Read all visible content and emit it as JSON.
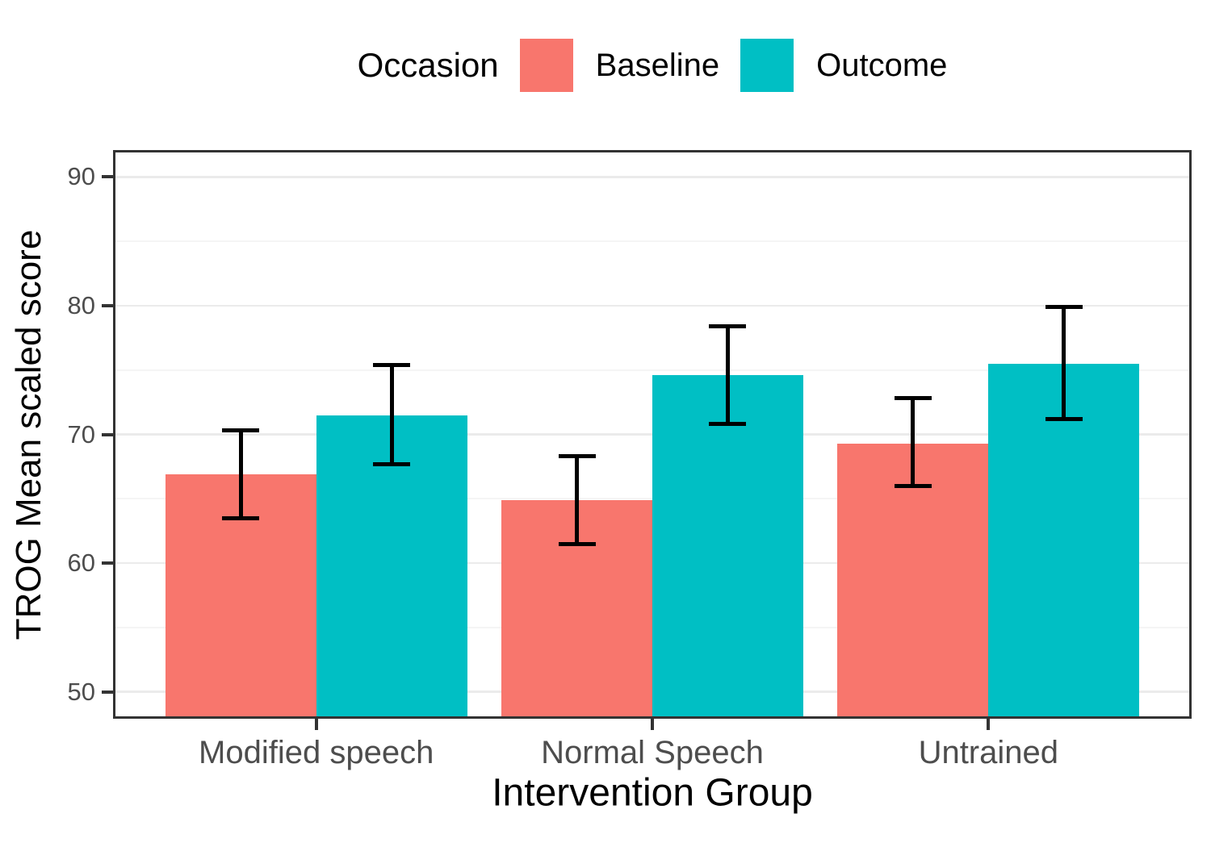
{
  "figure": {
    "y_axis_title": "TROG Mean scaled score",
    "x_axis_title": "Intervention Group"
  },
  "legend": {
    "title": "Occasion",
    "items": [
      {
        "label": "Baseline",
        "color": "#F8766D"
      },
      {
        "label": "Outcome",
        "color": "#00BFC4"
      }
    ]
  },
  "colors": {
    "baseline_fill": "#F8766D",
    "outcome_fill": "#00BFC4",
    "grid_major": "#EBEBEB",
    "grid_minor": "#F5F5F5",
    "panel_border": "#333333",
    "tick_mark": "#333333",
    "tick_label": "#4D4D4D",
    "error_bar": "#000000"
  },
  "chart_data": {
    "type": "bar",
    "title": "",
    "xlabel": "Intervention Group",
    "ylabel": "TROG Mean scaled score",
    "categories": [
      "Modified speech",
      "Normal Speech",
      "Untrained"
    ],
    "series": [
      {
        "name": "Baseline",
        "color": "#F8766D",
        "values": [
          66.9,
          64.9,
          69.3
        ],
        "error_low": [
          63.5,
          61.5,
          66.0
        ],
        "error_high": [
          70.3,
          68.3,
          72.8
        ]
      },
      {
        "name": "Outcome",
        "color": "#00BFC4",
        "values": [
          71.5,
          74.6,
          75.5
        ],
        "error_low": [
          67.7,
          70.8,
          71.2
        ],
        "error_high": [
          75.4,
          78.4,
          79.9
        ]
      }
    ],
    "ylim": [
      48.1,
      91.9
    ],
    "y_major_ticks": [
      50,
      60,
      70,
      80,
      90
    ],
    "y_minor_ticks": [
      55,
      65,
      75,
      85
    ],
    "grid": true,
    "legend_position": "top",
    "error_bars": true
  }
}
